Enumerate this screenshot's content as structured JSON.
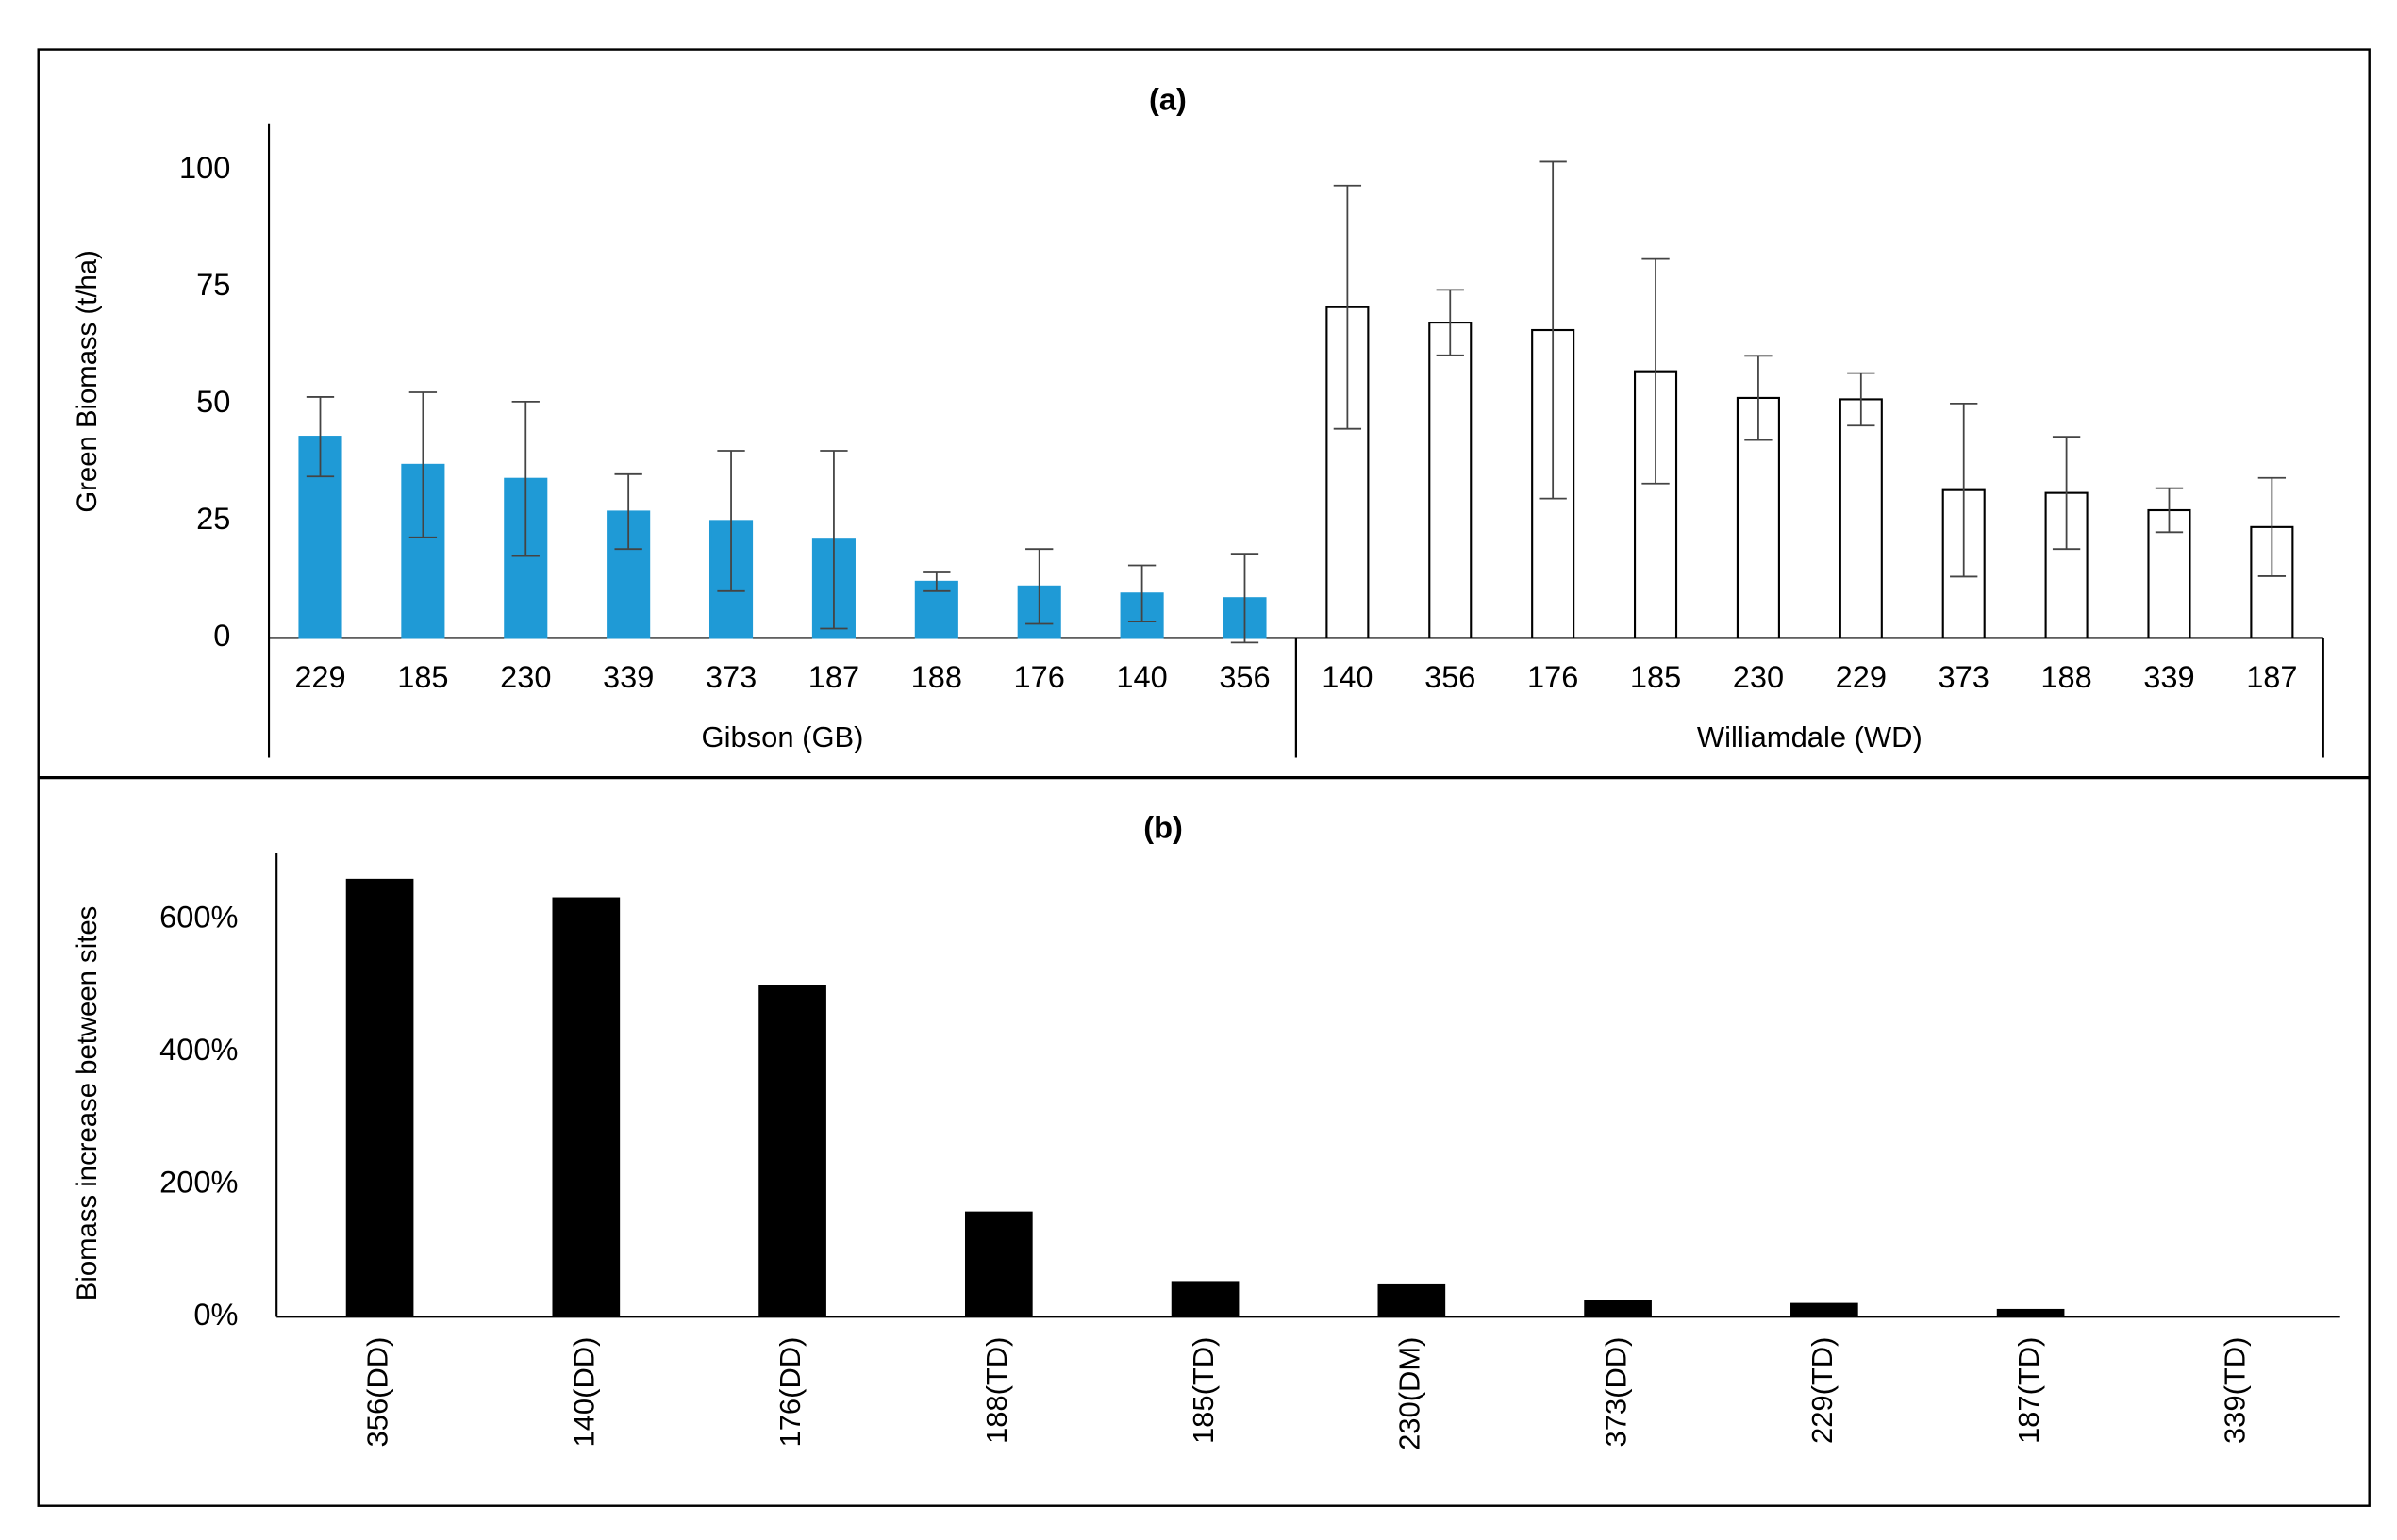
{
  "chart_data": [
    {
      "type": "grouped_error_bar",
      "title": "(a)",
      "y_label": "Green Biomass (t/ha)",
      "ylim": [
        0,
        110
      ],
      "yticks": [
        0,
        25,
        50,
        75,
        100
      ],
      "groups": [
        {
          "name": "Gibson (GB)",
          "color": "#1f9ad6",
          "edge": "#1f9ad6",
          "categories": [
            "229",
            "185",
            "230",
            "339",
            "373",
            "187",
            "188",
            "176",
            "140",
            "356"
          ],
          "values": [
            43,
            37,
            34,
            27,
            25,
            21,
            12,
            11,
            9.5,
            8.5
          ],
          "errors": [
            8.5,
            15.5,
            16.5,
            8,
            15,
            19,
            2,
            8,
            6,
            9.5
          ]
        },
        {
          "name": "Williamdale (WD)",
          "color": "#ffffff",
          "edge": "#000000",
          "categories": [
            "140",
            "356",
            "176",
            "185",
            "230",
            "229",
            "373",
            "188",
            "339",
            "187"
          ],
          "values": [
            70.7,
            67.4,
            65.8,
            57,
            51.3,
            51,
            31.6,
            31,
            27.3,
            23.7
          ],
          "errors": [
            26,
            7,
            36,
            24,
            9,
            5.6,
            18.5,
            12,
            4.7,
            10.5
          ]
        }
      ]
    },
    {
      "type": "bar",
      "title": "(b)",
      "y_label": "Biomass increase between sites",
      "color": "#000000",
      "ylim": [
        0,
        700
      ],
      "yticks": [
        {
          "value": 0,
          "label": "0%"
        },
        {
          "value": 200,
          "label": "200%"
        },
        {
          "value": 400,
          "label": "400%"
        },
        {
          "value": 600,
          "label": "600%"
        }
      ],
      "categories": [
        "356(DD)",
        "140(DD)",
        "176(DD)",
        "188(TD)",
        "185(TD)",
        "230(DM)",
        "373(DD)",
        "229(TD)",
        "187(TD)",
        "339(TD)"
      ],
      "values": [
        661,
        633,
        500,
        159,
        54,
        49,
        26,
        21,
        12,
        0
      ]
    }
  ]
}
